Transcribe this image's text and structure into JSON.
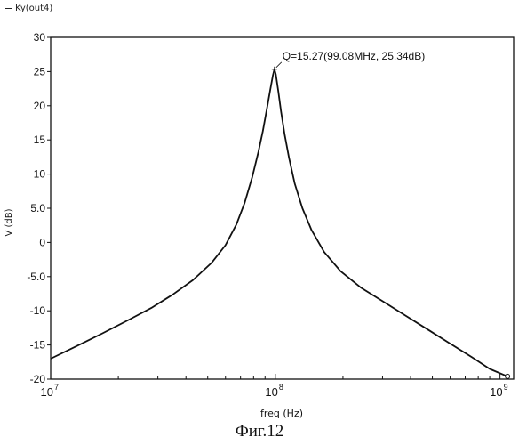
{
  "legend": {
    "entry": "Ky(out4)"
  },
  "caption": "Фиг.12",
  "chart_data": {
    "type": "line",
    "title": "",
    "xlabel": "freq (Hz)",
    "ylabel": "V (dB)",
    "xscale": "log",
    "xlim": [
      10000000,
      1150000000
    ],
    "ylim": [
      -20,
      30
    ],
    "grid": false,
    "legend_position": "top-left",
    "x_ticks": [
      {
        "value": 10000000,
        "base": "10",
        "exp": "7"
      },
      {
        "value": 100000000,
        "base": "10",
        "exp": "8"
      },
      {
        "value": 1000000000,
        "base": "10",
        "exp": "9"
      }
    ],
    "y_ticks": [
      {
        "value": 30,
        "label": "30"
      },
      {
        "value": 25,
        "label": "25"
      },
      {
        "value": 20,
        "label": "20"
      },
      {
        "value": 15,
        "label": "15"
      },
      {
        "value": 10,
        "label": "10"
      },
      {
        "value": 5,
        "label": "5.0"
      },
      {
        "value": 0,
        "label": "0"
      },
      {
        "value": -5,
        "label": "-5.0"
      },
      {
        "value": -10,
        "label": "-10"
      },
      {
        "value": -15,
        "label": "-15"
      },
      {
        "value": -20,
        "label": "-20"
      }
    ],
    "series": [
      {
        "name": "Ky(out4)",
        "color": "#111111",
        "points": [
          [
            10000000,
            -17.0
          ],
          [
            13000000,
            -15.2
          ],
          [
            17000000,
            -13.3
          ],
          [
            22000000,
            -11.4
          ],
          [
            28000000,
            -9.6
          ],
          [
            35000000,
            -7.6
          ],
          [
            43000000,
            -5.5
          ],
          [
            52000000,
            -3.0
          ],
          [
            60000000,
            -0.4
          ],
          [
            67000000,
            2.6
          ],
          [
            73000000,
            5.8
          ],
          [
            79000000,
            9.6
          ],
          [
            84000000,
            13.2
          ],
          [
            88000000,
            16.3
          ],
          [
            92000000,
            19.8
          ],
          [
            95000000,
            22.4
          ],
          [
            97500000,
            24.4
          ],
          [
            99080000,
            25.34
          ],
          [
            100500000,
            24.6
          ],
          [
            103000000,
            22.2
          ],
          [
            106000000,
            19.2
          ],
          [
            110000000,
            15.8
          ],
          [
            115000000,
            12.4
          ],
          [
            122000000,
            8.6
          ],
          [
            132000000,
            5.0
          ],
          [
            145000000,
            1.8
          ],
          [
            165000000,
            -1.4
          ],
          [
            195000000,
            -4.2
          ],
          [
            240000000,
            -6.6
          ],
          [
            300000000,
            -8.6
          ],
          [
            380000000,
            -10.7
          ],
          [
            480000000,
            -12.8
          ],
          [
            600000000,
            -14.8
          ],
          [
            750000000,
            -16.8
          ],
          [
            900000000,
            -18.5
          ],
          [
            1080000000,
            -19.6
          ]
        ]
      }
    ],
    "annotation": {
      "text": "Q=15.27(99.08MHz, 25.34dB)",
      "x": 99080000,
      "y": 25.34
    }
  }
}
